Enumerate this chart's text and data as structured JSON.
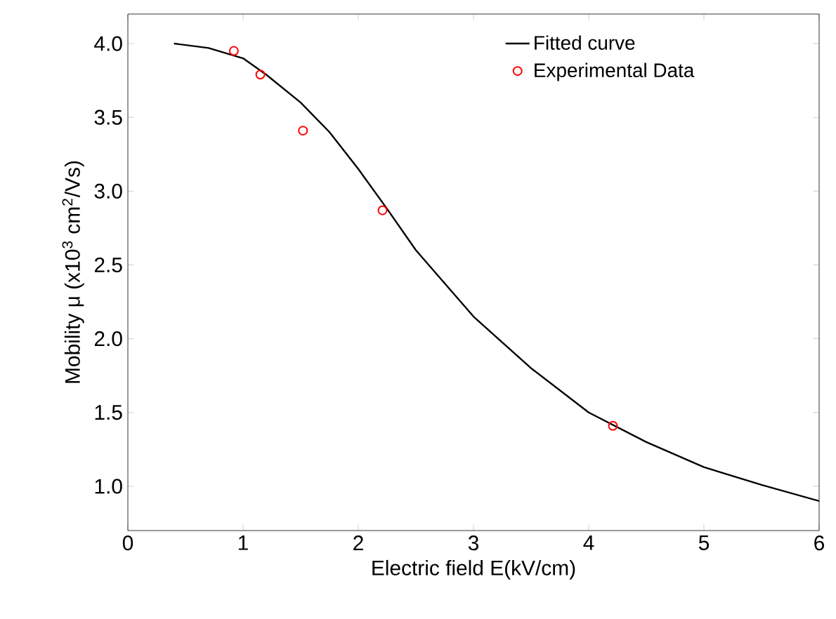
{
  "chart_data": {
    "type": "line",
    "xlabel": "Electric field  E(kV/cm)",
    "ylabel": "Mobility μ (x10$^{3}$ cm$^{2}$/Vs)",
    "xlim": [
      0,
      6
    ],
    "ylim": [
      0.7,
      4.2
    ],
    "xticks": [
      0,
      1,
      2,
      3,
      4,
      5,
      6
    ],
    "yticks": [
      {
        "value": 1,
        "label": "1.0"
      },
      {
        "value": 1.5,
        "label": "1.5"
      },
      {
        "value": 2,
        "label": "2.0"
      },
      {
        "value": 2.5,
        "label": "2.5"
      },
      {
        "value": 3,
        "label": "3.0"
      },
      {
        "value": 3.5,
        "label": "3.5"
      },
      {
        "value": 4,
        "label": "4.0"
      }
    ],
    "legend": "top right",
    "grid": false,
    "series": [
      {
        "name": "Fitted curve",
        "color": "#000000",
        "x": [
          0.4,
          0.7,
          1,
          1.2,
          1.5,
          1.75,
          2,
          2.25,
          2.5,
          3,
          3.5,
          4,
          4.5,
          5,
          5.5,
          6
        ],
        "values": [
          4.0,
          3.97,
          3.9,
          3.79,
          3.6,
          3.4,
          3.15,
          2.88,
          2.6,
          2.15,
          1.8,
          1.5,
          1.3,
          1.13,
          1.01,
          0.9
        ]
      },
      {
        "name": "Experimental Data",
        "type": "scatter",
        "marker": "circle",
        "color": "#ff0000",
        "x": [
          0.92,
          1.15,
          1.52,
          2.21,
          4.21
        ],
        "values": [
          3.95,
          3.79,
          3.41,
          2.87,
          1.41
        ]
      }
    ]
  }
}
